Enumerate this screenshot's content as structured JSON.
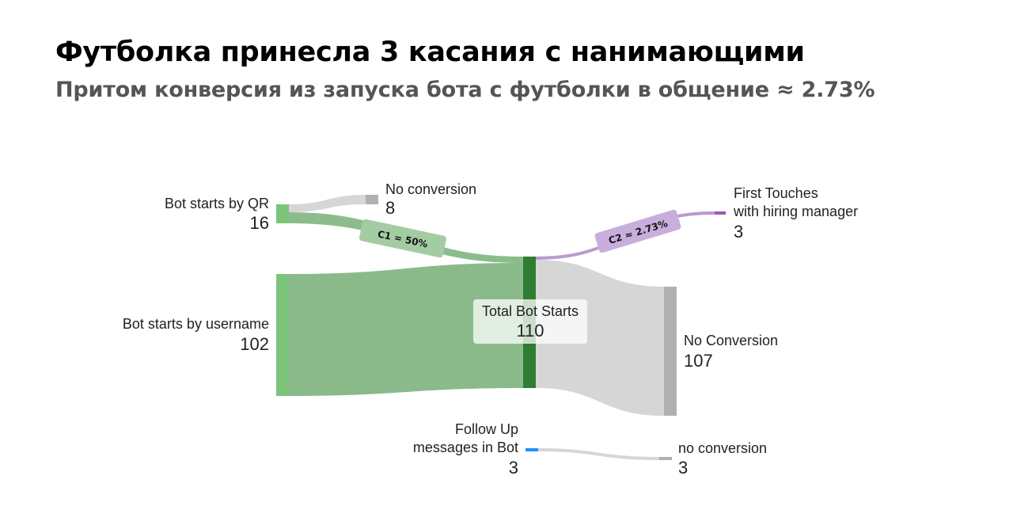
{
  "header": {
    "title": "Футболка принесла 3 касания с нанимающими",
    "subtitle": "Притом конверсия из запуска бота с футболки в общение ≈ 2.73%"
  },
  "chart_data": {
    "type": "sankey",
    "nodes": [
      {
        "id": "qr",
        "label": "Bot starts by QR",
        "value": "16",
        "color": "#7cc47c"
      },
      {
        "id": "username",
        "label": "Bot starts by username",
        "value": "102",
        "color": "#7cc47c"
      },
      {
        "id": "qr_noconv",
        "label": "No conversion",
        "value": "8",
        "color": "#b0b0b0"
      },
      {
        "id": "total",
        "label": "Total Bot Starts",
        "value": "110",
        "color": "#2e7d32"
      },
      {
        "id": "first",
        "label_line1": "First Touches",
        "label_line2": "with hiring manager",
        "value": "3",
        "color": "#9b59b6"
      },
      {
        "id": "noconv",
        "label": "No Conversion",
        "value": "107",
        "color": "#b0b0b0"
      },
      {
        "id": "followup",
        "label_line1": "Follow Up",
        "label_line2": "messages in Bot",
        "value": "3",
        "color": "#1e90ff"
      },
      {
        "id": "fu_noconv",
        "label": "no conversion",
        "value": "3",
        "color": "#b0b0b0"
      }
    ],
    "links": [
      {
        "source": "qr",
        "target": "qr_noconv",
        "value": 8
      },
      {
        "source": "qr",
        "target": "total",
        "value": 8
      },
      {
        "source": "username",
        "target": "total",
        "value": 102
      },
      {
        "source": "total",
        "target": "first",
        "value": 3
      },
      {
        "source": "total",
        "target": "noconv",
        "value": 107
      },
      {
        "source": "followup",
        "target": "fu_noconv",
        "value": 3
      }
    ],
    "annotations": [
      "C1 = 50%",
      "C2 ≈ 2.73%"
    ]
  }
}
